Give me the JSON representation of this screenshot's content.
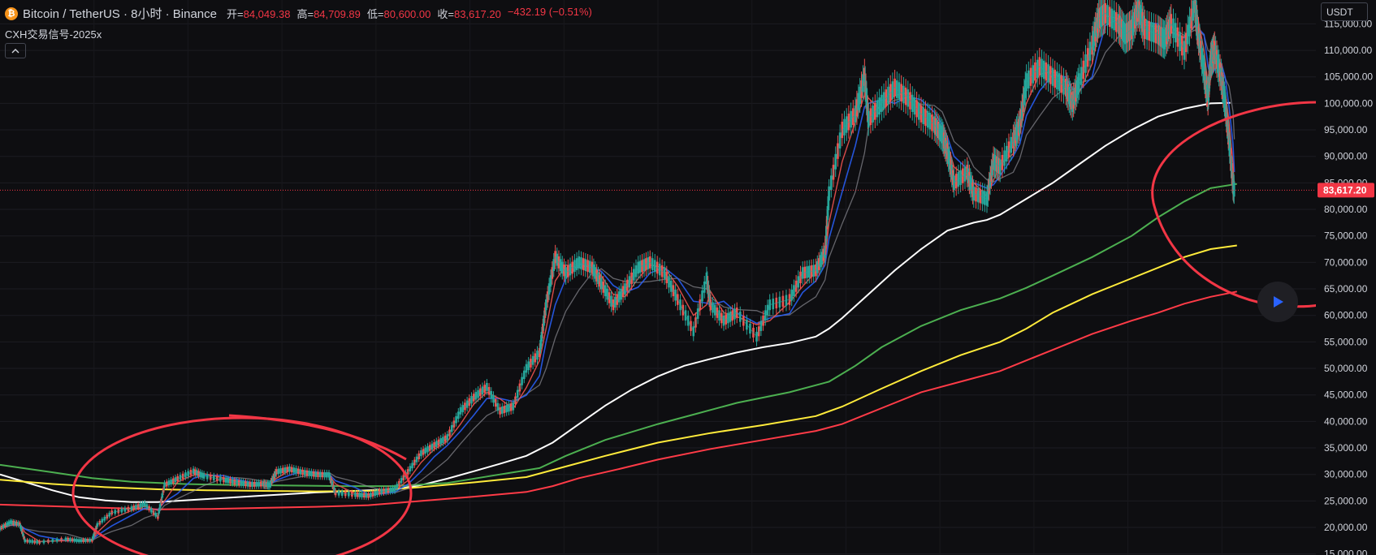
{
  "header": {
    "coin_icon": "bitcoin-icon",
    "symbol": "Bitcoin / TetherUS · 8小时 · Binance",
    "ohlc": [
      {
        "key": "开",
        "value": "84,049.38"
      },
      {
        "key": "高",
        "value": "84,709.89"
      },
      {
        "key": "低",
        "value": "80,600.00"
      },
      {
        "key": "收",
        "value": "83,617.20"
      }
    ],
    "change": "−432.19 (−0.51%)",
    "indicator": "CXH交易信号-2025x",
    "collapse_icon": "chevron-up-icon"
  },
  "currency_button": "USDT",
  "play_icon": "play-icon",
  "colors": {
    "background": "#0e0e11",
    "up": "#26a69a",
    "down": "#ef5350",
    "price_line": "#f23645",
    "ma_white": "#ffffff",
    "ma_green": "#4caf50",
    "ma_yellow": "#ffeb3b",
    "ma_red": "#ff3b47",
    "annotation": "#f23645"
  },
  "chart_data": {
    "type": "line",
    "yaxis": {
      "ticks": [
        15000,
        20000,
        25000,
        30000,
        35000,
        40000,
        45000,
        50000,
        55000,
        60000,
        65000,
        70000,
        75000,
        80000,
        85000,
        90000,
        95000,
        100000,
        105000,
        110000,
        115000
      ],
      "tick_labels": [
        "15,000.00",
        "20,000.00",
        "25,000.00",
        "30,000.00",
        "35,000.00",
        "40,000.00",
        "45,000.00",
        "50,000.00",
        "55,000.00",
        "60,000.00",
        "65,000.00",
        "70,000.00",
        "75,000.00",
        "80,000.00",
        "85,000.00",
        "90,000.00",
        "95,000.00",
        "100,000.00",
        "105,000.00",
        "110,000.00",
        "115,000.00"
      ],
      "range": [
        14800,
        119500
      ]
    },
    "last_price": 83617.2,
    "last_price_label": "83,617.20",
    "grid": true,
    "xrange": [
      0,
      100
    ],
    "series": [
      {
        "key": "price",
        "color": "#26a69a",
        "points": [
          [
            0,
            19800
          ],
          [
            0.8,
            21000
          ],
          [
            1.5,
            20600
          ],
          [
            1.9,
            17500
          ],
          [
            3,
            17200
          ],
          [
            5,
            17800
          ],
          [
            6,
            17500
          ],
          [
            7,
            17600
          ],
          [
            7.4,
            20500
          ],
          [
            8.5,
            22800
          ],
          [
            10,
            23600
          ],
          [
            11,
            24400
          ],
          [
            12,
            22000
          ],
          [
            12.5,
            28000
          ],
          [
            13.5,
            29200
          ],
          [
            14.7,
            30600
          ],
          [
            15.5,
            29700
          ],
          [
            17,
            29000
          ],
          [
            18,
            28500
          ],
          [
            19,
            28100
          ],
          [
            20,
            28200
          ],
          [
            20.5,
            28000
          ],
          [
            21,
            30500
          ],
          [
            22,
            31000
          ],
          [
            23,
            30400
          ],
          [
            24,
            30000
          ],
          [
            25,
            29900
          ],
          [
            25.5,
            26500
          ],
          [
            27,
            26200
          ],
          [
            28,
            26000
          ],
          [
            29,
            26800
          ],
          [
            30,
            27200
          ],
          [
            31,
            30500
          ],
          [
            32,
            34000
          ],
          [
            33,
            35500
          ],
          [
            34,
            37000
          ],
          [
            35,
            42000
          ],
          [
            36,
            44500
          ],
          [
            37,
            46500
          ],
          [
            38,
            42000
          ],
          [
            39,
            42800
          ],
          [
            40,
            50000
          ],
          [
            41,
            53000
          ],
          [
            41.5,
            62000
          ],
          [
            42.2,
            71000
          ],
          [
            43,
            68000
          ],
          [
            44,
            70000
          ],
          [
            45,
            69000
          ],
          [
            45.7,
            66000
          ],
          [
            46.6,
            62000
          ],
          [
            47.5,
            65000
          ],
          [
            48.5,
            69000
          ],
          [
            49.4,
            70000
          ],
          [
            50.5,
            68000
          ],
          [
            51.5,
            63000
          ],
          [
            52.7,
            57000
          ],
          [
            53.7,
            67000
          ],
          [
            54,
            62000
          ],
          [
            55,
            59000
          ],
          [
            56,
            60500
          ],
          [
            57.5,
            56000
          ],
          [
            58.5,
            62000
          ],
          [
            60,
            63000
          ],
          [
            61,
            68000
          ],
          [
            62,
            68500
          ],
          [
            62.7,
            72000
          ],
          [
            63,
            83000
          ],
          [
            64,
            95000
          ],
          [
            65,
            98000
          ],
          [
            65.7,
            105000
          ],
          [
            66,
            97000
          ],
          [
            67,
            100000
          ],
          [
            68,
            103000
          ],
          [
            69,
            101000
          ],
          [
            70,
            98000
          ],
          [
            71,
            96000
          ],
          [
            71.6,
            94000
          ],
          [
            72,
            91000
          ],
          [
            72.5,
            85000
          ],
          [
            73.5,
            87000
          ],
          [
            74,
            83000
          ],
          [
            75,
            82000
          ],
          [
            75.5,
            89000
          ],
          [
            76,
            88000
          ],
          [
            77,
            93000
          ],
          [
            77.5,
            96000
          ],
          [
            78,
            104000
          ],
          [
            79,
            107000
          ],
          [
            80,
            105000
          ],
          [
            81,
            103000
          ],
          [
            81.5,
            100000
          ],
          [
            82,
            104000
          ],
          [
            83,
            111000
          ],
          [
            83.5,
            116000
          ],
          [
            84,
            117000
          ],
          [
            85,
            115000
          ],
          [
            85.5,
            113000
          ],
          [
            86,
            114000
          ],
          [
            86.5,
            118000
          ],
          [
            87,
            114000
          ],
          [
            88,
            113000
          ],
          [
            88.5,
            112000
          ],
          [
            89,
            115000
          ],
          [
            90,
            110000
          ],
          [
            90.8,
            119000
          ],
          [
            91,
            114000
          ],
          [
            91.5,
            106000
          ],
          [
            91.8,
            101000
          ],
          [
            92,
            108000
          ],
          [
            92.3,
            110000
          ],
          [
            92.8,
            105000
          ],
          [
            93.1,
            100000
          ],
          [
            93.4,
            93000
          ],
          [
            93.7,
            84500
          ],
          [
            93.8,
            83617
          ]
        ]
      },
      {
        "key": "ma_white",
        "color": "#ffffff",
        "points": [
          [
            0,
            30000
          ],
          [
            2,
            28500
          ],
          [
            4,
            27000
          ],
          [
            6,
            25700
          ],
          [
            8,
            25100
          ],
          [
            10,
            24800
          ],
          [
            12,
            24800
          ],
          [
            14,
            25100
          ],
          [
            16,
            25400
          ],
          [
            18,
            25700
          ],
          [
            20,
            26000
          ],
          [
            22,
            26300
          ],
          [
            24,
            26600
          ],
          [
            26,
            26800
          ],
          [
            28,
            27000
          ],
          [
            30,
            27200
          ],
          [
            32,
            28000
          ],
          [
            34,
            29200
          ],
          [
            36,
            30600
          ],
          [
            38,
            32000
          ],
          [
            40,
            33500
          ],
          [
            42,
            36000
          ],
          [
            44,
            39500
          ],
          [
            46,
            43000
          ],
          [
            48,
            46000
          ],
          [
            50,
            48500
          ],
          [
            52,
            50500
          ],
          [
            54,
            51800
          ],
          [
            56,
            53000
          ],
          [
            58,
            54000
          ],
          [
            60,
            54800
          ],
          [
            62,
            56000
          ],
          [
            63,
            57500
          ],
          [
            64,
            59500
          ],
          [
            66,
            64000
          ],
          [
            68,
            68500
          ],
          [
            70,
            72500
          ],
          [
            72,
            76000
          ],
          [
            74,
            77500
          ],
          [
            75,
            78000
          ],
          [
            76,
            79000
          ],
          [
            78,
            82000
          ],
          [
            80,
            85000
          ],
          [
            82,
            88500
          ],
          [
            84,
            92000
          ],
          [
            86,
            95000
          ],
          [
            88,
            97500
          ],
          [
            90,
            99000
          ],
          [
            92,
            100000
          ],
          [
            93.5,
            100100
          ]
        ]
      },
      {
        "key": "ma_green",
        "color": "#4caf50",
        "points": [
          [
            0,
            31800
          ],
          [
            4,
            30400
          ],
          [
            7,
            29300
          ],
          [
            10,
            28600
          ],
          [
            14,
            28200
          ],
          [
            18,
            28000
          ],
          [
            22,
            27900
          ],
          [
            26,
            27800
          ],
          [
            30,
            27800
          ],
          [
            34,
            28400
          ],
          [
            38,
            30000
          ],
          [
            41,
            31200
          ],
          [
            43,
            33500
          ],
          [
            46,
            36500
          ],
          [
            50,
            39500
          ],
          [
            53,
            41500
          ],
          [
            56,
            43500
          ],
          [
            60,
            45500
          ],
          [
            63,
            47500
          ],
          [
            65,
            50500
          ],
          [
            67,
            54000
          ],
          [
            70,
            58000
          ],
          [
            73,
            61000
          ],
          [
            76,
            63200
          ],
          [
            78,
            65200
          ],
          [
            80,
            67500
          ],
          [
            83,
            71000
          ],
          [
            86,
            75000
          ],
          [
            88,
            78500
          ],
          [
            90,
            81500
          ],
          [
            92,
            84000
          ],
          [
            94,
            84800
          ]
        ]
      },
      {
        "key": "ma_yellow",
        "color": "#ffeb3b",
        "points": [
          [
            0,
            29000
          ],
          [
            4,
            28200
          ],
          [
            8,
            27600
          ],
          [
            12,
            27200
          ],
          [
            16,
            27000
          ],
          [
            20,
            26900
          ],
          [
            24,
            26800
          ],
          [
            28,
            26900
          ],
          [
            32,
            27600
          ],
          [
            36,
            28500
          ],
          [
            40,
            29500
          ],
          [
            43,
            31500
          ],
          [
            46,
            33500
          ],
          [
            50,
            36000
          ],
          [
            54,
            37800
          ],
          [
            58,
            39300
          ],
          [
            62,
            41000
          ],
          [
            64,
            42800
          ],
          [
            67,
            46200
          ],
          [
            70,
            49500
          ],
          [
            73,
            52500
          ],
          [
            76,
            55000
          ],
          [
            78,
            57500
          ],
          [
            80,
            60500
          ],
          [
            83,
            64000
          ],
          [
            86,
            67000
          ],
          [
            88,
            69000
          ],
          [
            90,
            71000
          ],
          [
            92,
            72500
          ],
          [
            94,
            73200
          ]
        ]
      },
      {
        "key": "ma_red",
        "color": "#ff3b47",
        "points": [
          [
            0,
            24300
          ],
          [
            4,
            24000
          ],
          [
            8,
            23700
          ],
          [
            12,
            23400
          ],
          [
            16,
            23500
          ],
          [
            20,
            23700
          ],
          [
            24,
            23900
          ],
          [
            28,
            24200
          ],
          [
            32,
            25000
          ],
          [
            36,
            25800
          ],
          [
            40,
            26700
          ],
          [
            42,
            27800
          ],
          [
            44,
            29300
          ],
          [
            47,
            31000
          ],
          [
            50,
            32800
          ],
          [
            54,
            34800
          ],
          [
            58,
            36500
          ],
          [
            62,
            38200
          ],
          [
            64,
            39500
          ],
          [
            67,
            42500
          ],
          [
            70,
            45500
          ],
          [
            73,
            47500
          ],
          [
            76,
            49500
          ],
          [
            78,
            51500
          ],
          [
            80,
            53500
          ],
          [
            83,
            56500
          ],
          [
            86,
            59000
          ],
          [
            88,
            60500
          ],
          [
            90,
            62200
          ],
          [
            92,
            63500
          ],
          [
            94,
            64500
          ]
        ]
      }
    ]
  }
}
